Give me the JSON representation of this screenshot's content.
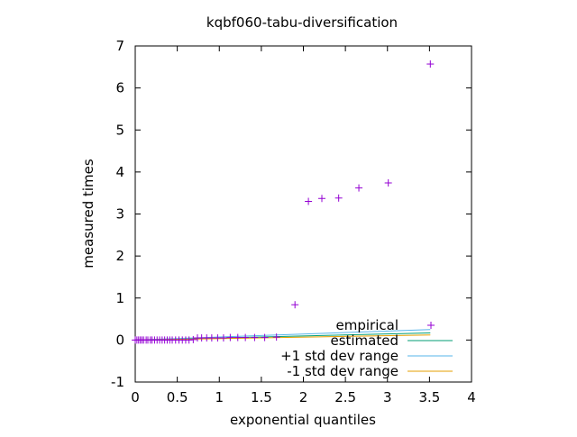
{
  "chart_data": {
    "type": "scatter",
    "title": "kqbf060-tabu-diversification",
    "xlabel": "exponential quantiles",
    "ylabel": "measured times",
    "xlim": [
      0,
      4
    ],
    "ylim": [
      -1,
      7
    ],
    "x_ticks": [
      "0",
      "0.5",
      "1",
      "1.5",
      "2",
      "2.5",
      "3",
      "3.5",
      "4"
    ],
    "y_ticks": [
      "-1",
      "0",
      "1",
      "2",
      "3",
      "4",
      "5",
      "6",
      "7"
    ],
    "x_tick_values": [
      0,
      0.5,
      1,
      1.5,
      2,
      2.5,
      3,
      3.5,
      4
    ],
    "y_tick_values": [
      -1,
      0,
      1,
      2,
      3,
      4,
      5,
      6,
      7
    ],
    "grid": false,
    "legend_position": "bottom-right",
    "series": [
      {
        "name": "empirical",
        "style": "points",
        "marker": "plus",
        "color": "#9400d3",
        "x": [
          0.0,
          0.02,
          0.04,
          0.06,
          0.08,
          0.1,
          0.13,
          0.15,
          0.18,
          0.2,
          0.23,
          0.26,
          0.29,
          0.32,
          0.35,
          0.38,
          0.41,
          0.44,
          0.48,
          0.52,
          0.56,
          0.6,
          0.64,
          0.69,
          0.74,
          0.79,
          0.85,
          0.91,
          0.98,
          1.05,
          1.13,
          1.22,
          1.31,
          1.42,
          1.54,
          1.68,
          1.9,
          2.06,
          2.22,
          2.42,
          2.66,
          3.01,
          3.51
        ],
        "y": [
          0.0,
          0.0,
          0.0,
          0.0,
          0.0,
          0.0,
          0.0,
          0.0,
          0.0,
          0.0,
          0.0,
          0.0,
          0.0,
          0.0,
          0.0,
          0.0,
          0.0,
          0.0,
          0.0,
          0.0,
          0.0,
          0.0,
          0.0,
          0.01,
          0.05,
          0.05,
          0.05,
          0.05,
          0.05,
          0.05,
          0.06,
          0.06,
          0.06,
          0.06,
          0.06,
          0.07,
          0.84,
          3.3,
          3.37,
          3.38,
          3.62,
          3.74,
          6.57
        ]
      },
      {
        "name": "estimated",
        "style": "line",
        "color": "#009e73",
        "x": [
          0,
          3.51
        ],
        "y": [
          0,
          0.17
        ]
      },
      {
        "name": "+1 std dev range",
        "style": "line",
        "color": "#56b4e9",
        "x": [
          0,
          3.51
        ],
        "y": [
          0,
          0.25
        ]
      },
      {
        "name": "-1 std dev range",
        "style": "line",
        "color": "#e69f00",
        "x": [
          0,
          3.51
        ],
        "y": [
          0,
          0.12
        ]
      }
    ]
  }
}
